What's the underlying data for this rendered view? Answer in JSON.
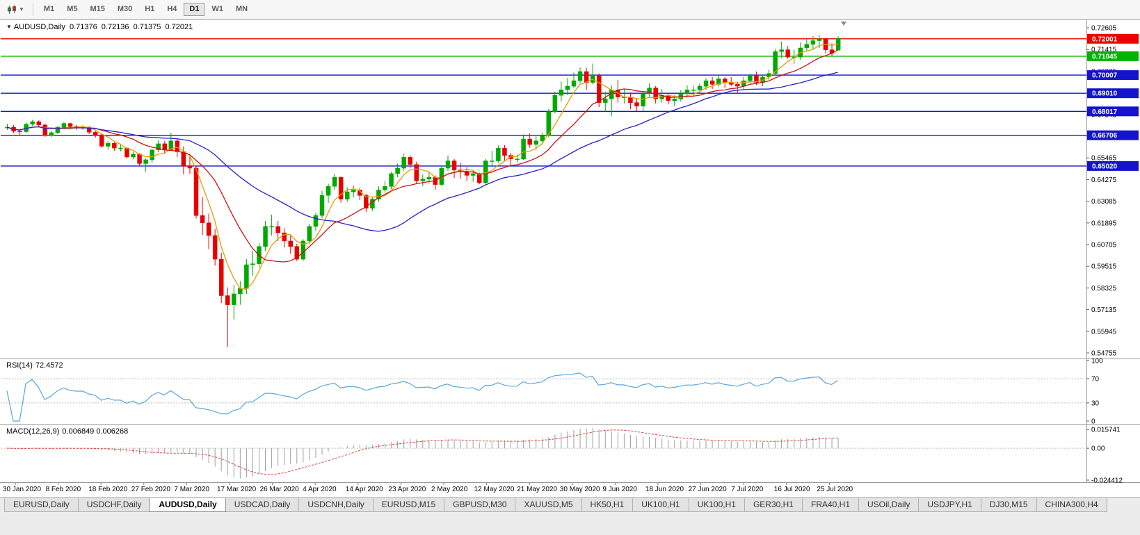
{
  "toolbar": {
    "chart_type_icon": "candlestick-chart-icon",
    "dropdown_icon": "caret-down-icon",
    "timeframes": [
      "M1",
      "M5",
      "M15",
      "M30",
      "H1",
      "H4",
      "D1",
      "W1",
      "MN"
    ],
    "active_timeframe": "D1"
  },
  "chart": {
    "info_bar": {
      "marker": "▼",
      "symbol": "AUDUSD,Daily",
      "open": "0.71376",
      "high": "0.72136",
      "low": "0.71375",
      "close": "0.72021"
    }
  },
  "chart_data": {
    "type": "candlestick",
    "title": "AUDUSD Daily",
    "symbol": "AUDUSD",
    "timeframe": "Daily",
    "bull_color": "#00a800",
    "bear_color": "#e80000",
    "y_axis": {
      "min": 0.54602,
      "max": 0.72986,
      "ticks": [
        "0.72605",
        "0.71415",
        "0.70225",
        "0.69035",
        "0.67845",
        "0.66655",
        "0.65465",
        "0.64275",
        "0.63085",
        "0.61895",
        "0.60705",
        "0.59515",
        "0.58325",
        "0.57135",
        "0.55945",
        "0.54755"
      ]
    },
    "x_axis": {
      "labels": [
        "30 Jan 2020",
        "8 Feb 2020",
        "18 Feb 2020",
        "27 Feb 2020",
        "7 Mar 2020",
        "17 Mar 2020",
        "26 Mar 2020",
        "4 Apr 2020",
        "14 Apr 2020",
        "23 Apr 2020",
        "2 May 2020",
        "12 May 2020",
        "21 May 2020",
        "30 May 2020",
        "9 Jun 2020",
        "18 Jun 2020",
        "27 Jun 2020",
        "7 Jul 2020",
        "16 Jul 2020",
        "25 Jul 2020"
      ]
    },
    "horizontal_levels": [
      {
        "price": "0.72001",
        "value": 0.72001,
        "color": "#ee0000"
      },
      {
        "price": "0.71045",
        "value": 0.71045,
        "color": "#00b400"
      },
      {
        "price": "0.70007",
        "value": 0.70007,
        "color": "#1414cd"
      },
      {
        "price": "0.69010",
        "value": 0.6901,
        "color": "#1414cd"
      },
      {
        "price": "0.68017",
        "value": 0.68017,
        "color": "#1414cd"
      },
      {
        "price": "0.66706",
        "value": 0.66706,
        "color": "#1414cd"
      },
      {
        "price": "0.65020",
        "value": 0.6502,
        "color": "#1414cd"
      }
    ],
    "moving_averages": [
      {
        "period": 5,
        "color": "#e69b00"
      },
      {
        "period": 12,
        "color": "#cc1111"
      },
      {
        "period": 30,
        "color": "#2222cc"
      }
    ],
    "candles": [
      [
        0.671,
        0.6733,
        0.67,
        0.6715
      ],
      [
        0.6715,
        0.6727,
        0.6682,
        0.6693
      ],
      [
        0.6693,
        0.6705,
        0.667,
        0.669
      ],
      [
        0.669,
        0.674,
        0.6683,
        0.6731
      ],
      [
        0.6731,
        0.6755,
        0.6722,
        0.6745
      ],
      [
        0.6745,
        0.6752,
        0.6715,
        0.6727
      ],
      [
        0.6727,
        0.6735,
        0.6662,
        0.667
      ],
      [
        0.667,
        0.6693,
        0.666,
        0.6685
      ],
      [
        0.6685,
        0.6722,
        0.6678,
        0.6715
      ],
      [
        0.6715,
        0.6743,
        0.6708,
        0.6735
      ],
      [
        0.6735,
        0.674,
        0.6705,
        0.6718
      ],
      [
        0.6718,
        0.6728,
        0.67,
        0.6712
      ],
      [
        0.6712,
        0.6725,
        0.67,
        0.6713
      ],
      [
        0.6713,
        0.672,
        0.6677,
        0.6687
      ],
      [
        0.6687,
        0.6695,
        0.6658,
        0.6673
      ],
      [
        0.6673,
        0.668,
        0.6602,
        0.661
      ],
      [
        0.661,
        0.6638,
        0.6592,
        0.6626
      ],
      [
        0.6626,
        0.6633,
        0.6585,
        0.66
      ],
      [
        0.66,
        0.6618,
        0.6582,
        0.66
      ],
      [
        0.66,
        0.6607,
        0.6542,
        0.6551
      ],
      [
        0.6551,
        0.658,
        0.6538,
        0.6567
      ],
      [
        0.6567,
        0.6572,
        0.6505,
        0.6515
      ],
      [
        0.6515,
        0.6545,
        0.647,
        0.6536
      ],
      [
        0.6536,
        0.6595,
        0.652,
        0.659
      ],
      [
        0.659,
        0.6645,
        0.6577,
        0.6624
      ],
      [
        0.6624,
        0.664,
        0.657,
        0.659
      ],
      [
        0.659,
        0.6685,
        0.6585,
        0.664
      ],
      [
        0.664,
        0.665,
        0.655,
        0.658
      ],
      [
        0.658,
        0.661,
        0.6455,
        0.65
      ],
      [
        0.65,
        0.656,
        0.646,
        0.649
      ],
      [
        0.649,
        0.65,
        0.6213,
        0.623
      ],
      [
        0.623,
        0.633,
        0.6123,
        0.619
      ],
      [
        0.619,
        0.624,
        0.6045,
        0.612
      ],
      [
        0.612,
        0.6155,
        0.5955,
        0.599
      ],
      [
        0.599,
        0.6025,
        0.575,
        0.579
      ],
      [
        0.579,
        0.5835,
        0.5508,
        0.574
      ],
      [
        0.574,
        0.585,
        0.566,
        0.58
      ],
      [
        0.58,
        0.587,
        0.574,
        0.583
      ],
      [
        0.583,
        0.599,
        0.58,
        0.596
      ],
      [
        0.596,
        0.6035,
        0.59,
        0.5965
      ],
      [
        0.5965,
        0.608,
        0.5945,
        0.606
      ],
      [
        0.606,
        0.62,
        0.6035,
        0.617
      ],
      [
        0.617,
        0.6235,
        0.612,
        0.617
      ],
      [
        0.617,
        0.62,
        0.609,
        0.6135
      ],
      [
        0.6135,
        0.616,
        0.6055,
        0.609
      ],
      [
        0.609,
        0.612,
        0.602,
        0.606
      ],
      [
        0.606,
        0.6075,
        0.598,
        0.599
      ],
      [
        0.599,
        0.61,
        0.5982,
        0.609
      ],
      [
        0.609,
        0.6185,
        0.6075,
        0.617
      ],
      [
        0.617,
        0.6245,
        0.6145,
        0.623
      ],
      [
        0.623,
        0.6365,
        0.6215,
        0.634
      ],
      [
        0.634,
        0.6405,
        0.63,
        0.639
      ],
      [
        0.639,
        0.646,
        0.637,
        0.644
      ],
      [
        0.644,
        0.6445,
        0.63,
        0.632
      ],
      [
        0.632,
        0.6385,
        0.6305,
        0.636
      ],
      [
        0.636,
        0.6395,
        0.633,
        0.637
      ],
      [
        0.637,
        0.638,
        0.6315,
        0.634
      ],
      [
        0.634,
        0.635,
        0.625,
        0.627
      ],
      [
        0.627,
        0.633,
        0.6255,
        0.632
      ],
      [
        0.632,
        0.639,
        0.6305,
        0.637
      ],
      [
        0.637,
        0.642,
        0.6355,
        0.639
      ],
      [
        0.639,
        0.647,
        0.6375,
        0.646
      ],
      [
        0.646,
        0.6515,
        0.644,
        0.649
      ],
      [
        0.649,
        0.657,
        0.6475,
        0.655
      ],
      [
        0.655,
        0.656,
        0.649,
        0.651
      ],
      [
        0.651,
        0.6525,
        0.6402,
        0.642
      ],
      [
        0.642,
        0.6455,
        0.639,
        0.643
      ],
      [
        0.643,
        0.6465,
        0.6405,
        0.644
      ],
      [
        0.644,
        0.645,
        0.6372,
        0.64
      ],
      [
        0.64,
        0.6505,
        0.639,
        0.649
      ],
      [
        0.649,
        0.656,
        0.6475,
        0.653
      ],
      [
        0.653,
        0.654,
        0.6435,
        0.648
      ],
      [
        0.648,
        0.652,
        0.6432,
        0.647
      ],
      [
        0.647,
        0.6495,
        0.642,
        0.645
      ],
      [
        0.645,
        0.648,
        0.6415,
        0.646
      ],
      [
        0.646,
        0.6465,
        0.6403,
        0.641
      ],
      [
        0.641,
        0.654,
        0.64,
        0.653
      ],
      [
        0.653,
        0.6585,
        0.6505,
        0.653
      ],
      [
        0.653,
        0.6615,
        0.652,
        0.66
      ],
      [
        0.66,
        0.6617,
        0.6532,
        0.656
      ],
      [
        0.656,
        0.6575,
        0.6505,
        0.654
      ],
      [
        0.654,
        0.6565,
        0.652,
        0.654
      ],
      [
        0.654,
        0.6675,
        0.6535,
        0.665
      ],
      [
        0.665,
        0.668,
        0.6602,
        0.662
      ],
      [
        0.662,
        0.6665,
        0.659,
        0.664
      ],
      [
        0.664,
        0.6685,
        0.662,
        0.667
      ],
      [
        0.667,
        0.6815,
        0.666,
        0.68
      ],
      [
        0.68,
        0.691,
        0.679,
        0.689
      ],
      [
        0.689,
        0.6965,
        0.6855,
        0.692
      ],
      [
        0.692,
        0.6985,
        0.689,
        0.694
      ],
      [
        0.694,
        0.7015,
        0.693,
        0.697
      ],
      [
        0.697,
        0.7043,
        0.6955,
        0.702
      ],
      [
        0.702,
        0.704,
        0.692,
        0.696
      ],
      [
        0.696,
        0.7064,
        0.695,
        0.7
      ],
      [
        0.7,
        0.701,
        0.6825,
        0.685
      ],
      [
        0.685,
        0.691,
        0.68,
        0.687
      ],
      [
        0.687,
        0.6945,
        0.6775,
        0.692
      ],
      [
        0.692,
        0.6975,
        0.685,
        0.688
      ],
      [
        0.688,
        0.6925,
        0.6845,
        0.688
      ],
      [
        0.688,
        0.6905,
        0.6815,
        0.685
      ],
      [
        0.685,
        0.687,
        0.68,
        0.683
      ],
      [
        0.683,
        0.691,
        0.6805,
        0.69
      ],
      [
        0.69,
        0.6955,
        0.688,
        0.693
      ],
      [
        0.693,
        0.694,
        0.6845,
        0.687
      ],
      [
        0.687,
        0.6925,
        0.685,
        0.689
      ],
      [
        0.689,
        0.69,
        0.684,
        0.686
      ],
      [
        0.686,
        0.689,
        0.683,
        0.687
      ],
      [
        0.687,
        0.692,
        0.6855,
        0.69
      ],
      [
        0.69,
        0.6945,
        0.688,
        0.692
      ],
      [
        0.692,
        0.694,
        0.6885,
        0.692
      ],
      [
        0.692,
        0.6955,
        0.69,
        0.694
      ],
      [
        0.694,
        0.6985,
        0.692,
        0.697
      ],
      [
        0.697,
        0.699,
        0.6925,
        0.695
      ],
      [
        0.695,
        0.7,
        0.6935,
        0.698
      ],
      [
        0.698,
        0.699,
        0.693,
        0.696
      ],
      [
        0.696,
        0.699,
        0.694,
        0.695
      ],
      [
        0.695,
        0.6965,
        0.69,
        0.694
      ],
      [
        0.694,
        0.699,
        0.692,
        0.697
      ],
      [
        0.697,
        0.701,
        0.6955,
        0.7
      ],
      [
        0.7,
        0.702,
        0.6945,
        0.696
      ],
      [
        0.696,
        0.7005,
        0.694,
        0.699
      ],
      [
        0.699,
        0.703,
        0.6975,
        0.701
      ],
      [
        0.701,
        0.7145,
        0.7,
        0.713
      ],
      [
        0.713,
        0.7185,
        0.7095,
        0.714
      ],
      [
        0.714,
        0.716,
        0.709,
        0.71
      ],
      [
        0.71,
        0.714,
        0.7063,
        0.71
      ],
      [
        0.71,
        0.718,
        0.7085,
        0.715
      ],
      [
        0.715,
        0.72,
        0.7135,
        0.717
      ],
      [
        0.717,
        0.7215,
        0.7145,
        0.719
      ],
      [
        0.719,
        0.722,
        0.715,
        0.72
      ],
      [
        0.72,
        0.7205,
        0.712,
        0.714
      ],
      [
        0.714,
        0.7175,
        0.7105,
        0.712
      ],
      [
        0.71376,
        0.72136,
        0.71375,
        0.72021
      ]
    ]
  },
  "rsi_panel": {
    "name": "RSI(14)",
    "value": "72.4572",
    "axis_labels": [
      "100",
      "70",
      "30",
      "0"
    ],
    "levels": [
      70,
      30
    ],
    "line_color": "#58a5dc"
  },
  "macd_panel": {
    "name": "MACD(12,26,9)",
    "values": "0.006849 0.006268",
    "axis_top": "0.015741",
    "axis_zero": "0.00",
    "axis_bottom": "-0.024412",
    "histogram_color": "#9e9e9e",
    "signal_color": "#e03c32"
  },
  "bottom_tabs": {
    "active_index": 2,
    "items": [
      "EURUSD,Daily",
      "USDCHF,Daily",
      "AUDUSD,Daily",
      "USDCAD,Daily",
      "USDCNH,Daily",
      "EURUSD,M15",
      "GBPUSD,M30",
      "XAUUSD,M5",
      "HK50,H1",
      "UK100,H1",
      "UK100,H1",
      "GER30,H1",
      "FRA40,H1",
      "USOil,Daily",
      "USDJPY,H1",
      "DJ30,M15",
      "CHINA300,H4"
    ]
  }
}
